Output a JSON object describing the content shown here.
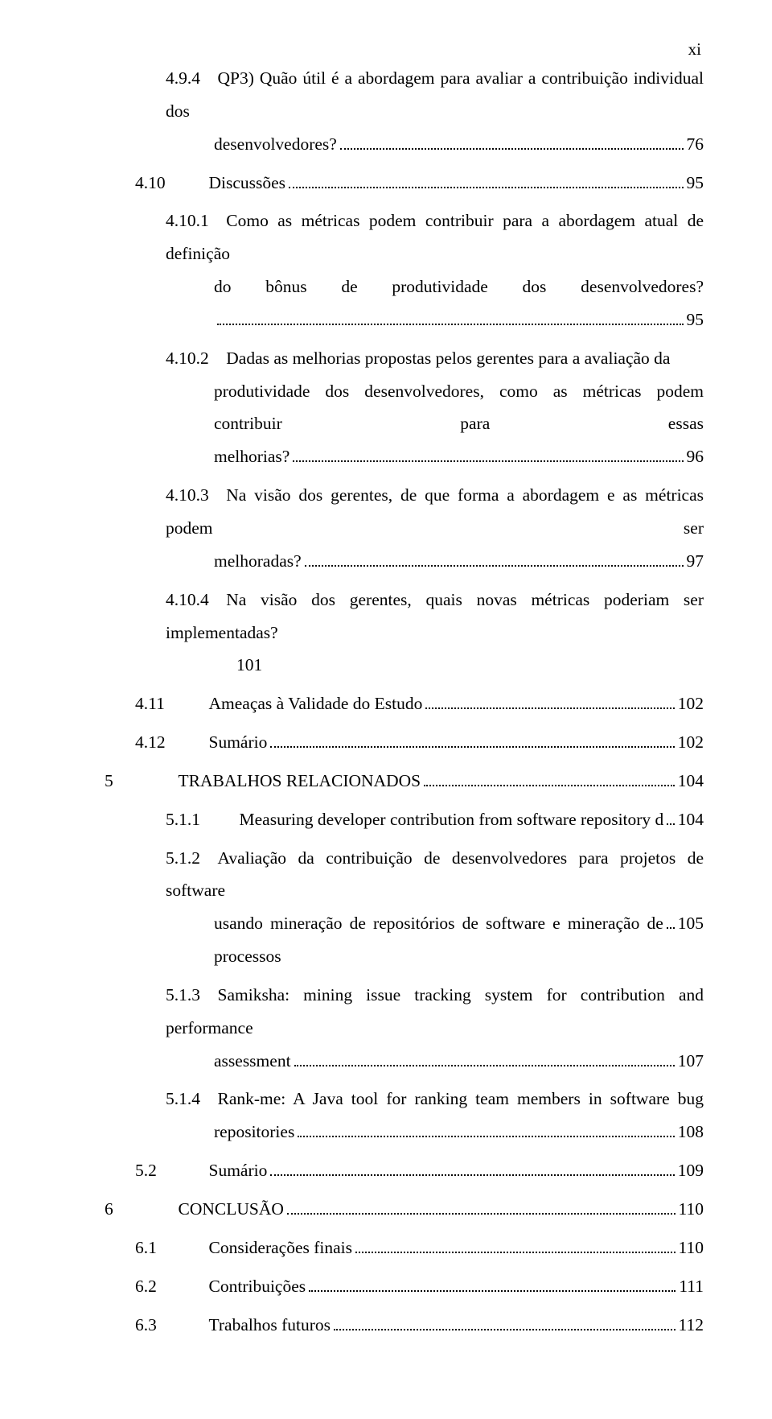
{
  "page_marker": "xi",
  "entries": [
    {
      "class": "indent-2",
      "type": "multi",
      "lines": [
        "4.9.4 QP3) Quão útil é a abordagem para avaliar a contribuição individual dos"
      ],
      "last_prefix": "desenvolvedores?",
      "page": "76",
      "hang": "hang"
    },
    {
      "class": "indent-1",
      "type": "single",
      "num": "4.10",
      "text": "Discussões",
      "page": "95",
      "num_wide": true
    },
    {
      "class": "indent-2",
      "type": "multi",
      "lines": [
        "4.10.1 Como as métricas podem contribuir para a abordagem atual de definição",
        "do bônus de produtividade dos desenvolvedores?"
      ],
      "last_prefix": "",
      "page": "95",
      "hang": "hang"
    },
    {
      "class": "indent-2",
      "type": "multi",
      "lines": [
        "4.10.2 Dadas as melhorias propostas pelos gerentes para a avaliação da",
        "produtividade dos desenvolvedores, como as métricas podem contribuir para essas"
      ],
      "last_prefix": "melhorias?",
      "page": "96",
      "hang": "hang"
    },
    {
      "class": "indent-2",
      "type": "multi",
      "lines": [
        "4.10.3 Na visão dos gerentes, de que forma a abordagem e as métricas podem ser"
      ],
      "last_prefix": "melhoradas?",
      "page": "97",
      "hang": "hang"
    },
    {
      "class": "indent-2",
      "type": "multi",
      "lines": [
        "4.10.4 Na visão dos gerentes, quais novas métricas poderiam ser implementadas?"
      ],
      "last_prefix": "101",
      "page": "",
      "hang": "hang2",
      "no_leader": true
    },
    {
      "class": "indent-1",
      "type": "single",
      "num": "4.11",
      "text": "Ameaças à Validade do Estudo",
      "page": "102",
      "num_wide": true
    },
    {
      "class": "indent-1",
      "type": "single",
      "num": "4.12",
      "text": "Sumário",
      "page": "102",
      "num_wide": true
    },
    {
      "class": "indent-0",
      "type": "single",
      "num": "5",
      "text": "TRABALHOS RELACIONADOS",
      "page": "104",
      "num_wide": true
    },
    {
      "class": "indent-2",
      "type": "single",
      "num": "5.1.1",
      "text": "Measuring developer contribution from software repository data",
      "page": "104",
      "num_wide": true
    },
    {
      "class": "indent-2",
      "type": "multi",
      "lines": [
        "5.1.2 Avaliação da contribuição de desenvolvedores para projetos de software"
      ],
      "last_prefix": "usando mineração de repositórios de software e mineração de processos",
      "page": "105",
      "hang": "hang"
    },
    {
      "class": "indent-2",
      "type": "multi",
      "lines": [
        "5.1.3 Samiksha: mining issue tracking system for contribution and performance"
      ],
      "last_prefix": "assessment",
      "page": "107",
      "hang": "hang"
    },
    {
      "class": "indent-2",
      "type": "multi",
      "lines": [
        "5.1.4 Rank-me: A Java tool for ranking team members in software bug"
      ],
      "last_prefix": "repositories",
      "page": "108",
      "hang": "hang"
    },
    {
      "class": "indent-1",
      "type": "single",
      "num": "5.2",
      "text": "Sumário",
      "page": "109",
      "num_wide": true
    },
    {
      "class": "indent-0",
      "type": "single",
      "num": "6",
      "text": "CONCLUSÃO",
      "page": "110",
      "num_wide": true
    },
    {
      "class": "indent-1",
      "type": "single",
      "num": "6.1",
      "text": "Considerações finais",
      "page": "110",
      "num_wide": true
    },
    {
      "class": "indent-1",
      "type": "single",
      "num": "6.2",
      "text": "Contribuições",
      "page": "111",
      "num_wide": true
    },
    {
      "class": "indent-1",
      "type": "single",
      "num": "6.3",
      "text": "Trabalhos futuros",
      "page": "112",
      "num_wide": true
    }
  ]
}
